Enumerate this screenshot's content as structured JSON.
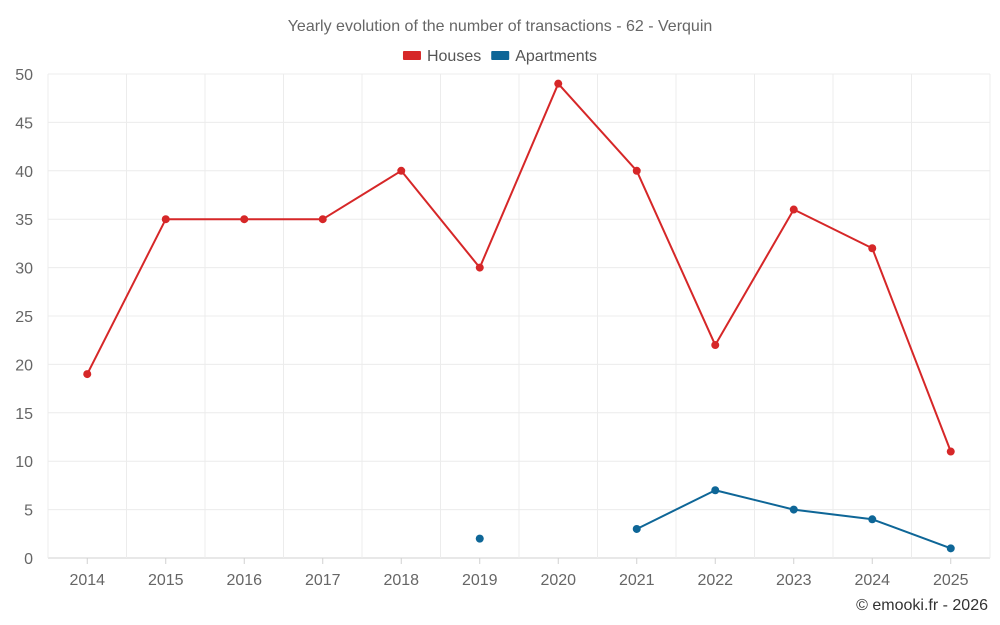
{
  "chart_data": {
    "type": "line",
    "title": "Yearly evolution of the number of transactions - 62 - Verquin",
    "categories": [
      "2014",
      "2015",
      "2016",
      "2017",
      "2018",
      "2019",
      "2020",
      "2021",
      "2022",
      "2023",
      "2024",
      "2025"
    ],
    "ylim": [
      0,
      50
    ],
    "yticks": [
      0,
      5,
      10,
      15,
      20,
      25,
      30,
      35,
      40,
      45,
      50
    ],
    "grid": true,
    "legend_position": "top-center",
    "series": [
      {
        "name": "Houses",
        "color": "#d62728",
        "values": [
          19,
          35,
          35,
          35,
          40,
          30,
          49,
          40,
          22,
          36,
          32,
          11
        ]
      },
      {
        "name": "Apartments",
        "color": "#0e6697",
        "values": [
          null,
          null,
          null,
          null,
          null,
          2,
          null,
          3,
          7,
          5,
          4,
          1
        ]
      }
    ]
  },
  "footer": {
    "copyright": "© emooki.fr - 2026"
  }
}
